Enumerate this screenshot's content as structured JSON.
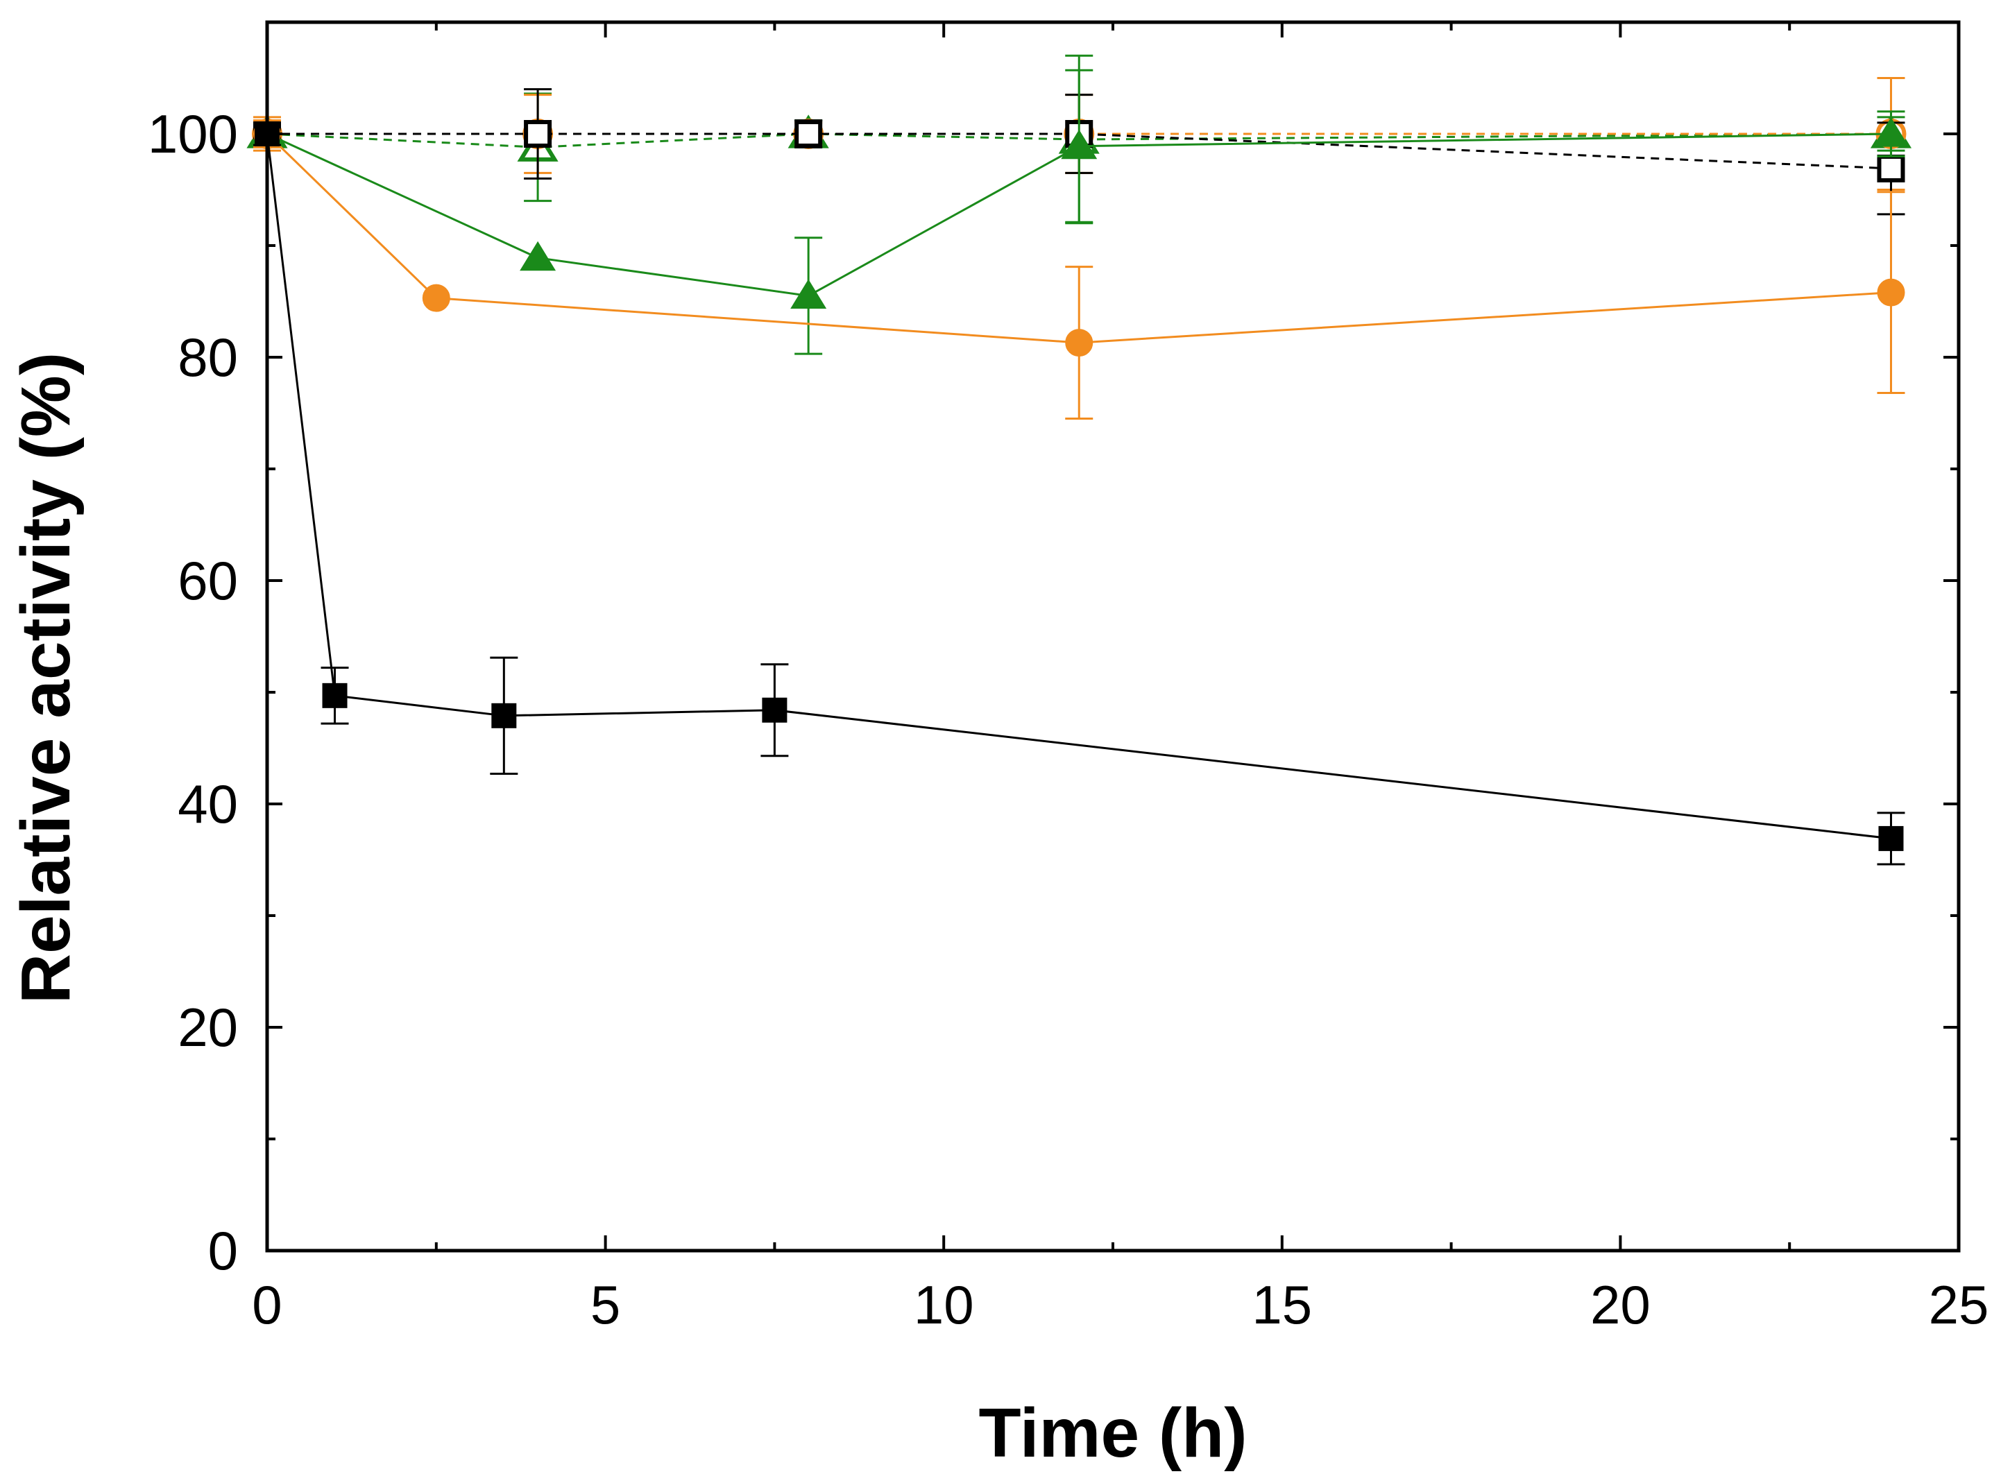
{
  "chart_data": {
    "type": "line",
    "title": "",
    "xlabel": "Time (h)",
    "ylabel": "Relative activity (%)",
    "xlim": [
      0,
      25
    ],
    "ylim": [
      0,
      110
    ],
    "x_ticks": [
      0,
      5,
      10,
      15,
      20,
      25
    ],
    "y_ticks": [
      0,
      20,
      40,
      60,
      80,
      100
    ],
    "grid": false,
    "legend": "none",
    "series": [
      {
        "name": "black-filled-square",
        "color": "#000000",
        "marker": "square",
        "filled": true,
        "line_style": "solid",
        "x": [
          0,
          1,
          3.5,
          7.5,
          24
        ],
        "y": [
          100,
          49.7,
          47.9,
          48.4,
          36.9
        ],
        "err": [
          1.0,
          2.5,
          5.2,
          4.1,
          2.3
        ]
      },
      {
        "name": "black-open-square",
        "color": "#000000",
        "marker": "square",
        "filled": false,
        "line_style": "dashed",
        "x": [
          0,
          4,
          8,
          12,
          24
        ],
        "y": [
          100,
          100,
          100,
          100,
          96.9
        ],
        "err": [
          1.0,
          4.0,
          1.2,
          3.5,
          4.1
        ]
      },
      {
        "name": "orange-filled-circle",
        "color": "#F28C1F",
        "marker": "circle",
        "filled": true,
        "line_style": "solid",
        "x": [
          0,
          2.5,
          12,
          24
        ],
        "y": [
          100,
          85.3,
          81.3,
          85.8
        ],
        "err": [
          1.2,
          0,
          6.8,
          9.0
        ]
      },
      {
        "name": "orange-open-circle",
        "color": "#F28C1F",
        "marker": "circle",
        "filled": false,
        "line_style": "dashed",
        "x": [
          0,
          4,
          8,
          12,
          24
        ],
        "y": [
          100,
          100,
          100,
          100,
          100
        ],
        "err": [
          1.5,
          3.5,
          1.0,
          3.5,
          5.0
        ]
      },
      {
        "name": "green-filled-triangle",
        "color": "#1A8A1A",
        "marker": "triangle",
        "filled": true,
        "line_style": "solid",
        "x": [
          0,
          4,
          8,
          12,
          24
        ],
        "y": [
          100,
          88.9,
          85.5,
          98.9,
          100
        ],
        "err": [
          0,
          0,
          5.2,
          6.8,
          2.0
        ]
      },
      {
        "name": "green-open-triangle",
        "color": "#1A8A1A",
        "marker": "triangle",
        "filled": false,
        "line_style": "dashed",
        "x": [
          0,
          4,
          8,
          12,
          24
        ],
        "y": [
          100,
          98.8,
          100,
          99.5,
          100
        ],
        "err": [
          1.0,
          4.8,
          1.2,
          7.5,
          1.5
        ]
      }
    ]
  }
}
